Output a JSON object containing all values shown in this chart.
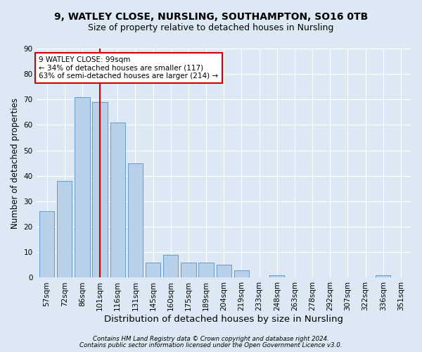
{
  "title1": "9, WATLEY CLOSE, NURSLING, SOUTHAMPTON, SO16 0TB",
  "title2": "Size of property relative to detached houses in Nursling",
  "xlabel": "Distribution of detached houses by size in Nursling",
  "ylabel": "Number of detached properties",
  "categories": [
    "57sqm",
    "72sqm",
    "86sqm",
    "101sqm",
    "116sqm",
    "131sqm",
    "145sqm",
    "160sqm",
    "175sqm",
    "189sqm",
    "204sqm",
    "219sqm",
    "233sqm",
    "248sqm",
    "263sqm",
    "278sqm",
    "292sqm",
    "307sqm",
    "322sqm",
    "336sqm",
    "351sqm"
  ],
  "values": [
    26,
    38,
    71,
    69,
    61,
    45,
    6,
    9,
    6,
    6,
    5,
    3,
    0,
    1,
    0,
    0,
    0,
    0,
    0,
    1,
    0
  ],
  "bar_color": "#b8d0ea",
  "bar_edge_color": "#6699cc",
  "property_label": "9 WATLEY CLOSE: 99sqm",
  "annotation_line1": "← 34% of detached houses are smaller (117)",
  "annotation_line2": "63% of semi-detached houses are larger (214) →",
  "vline_x_index": 3,
  "vline_color": "#cc0000",
  "footnote1": "Contains HM Land Registry data © Crown copyright and database right 2024.",
  "footnote2": "Contains public sector information licensed under the Open Government Licence v3.0.",
  "background_color": "#dce9f5",
  "plot_bg_color": "#dce9f5",
  "ylim": [
    0,
    90
  ],
  "yticks": [
    0,
    10,
    20,
    30,
    40,
    50,
    60,
    70,
    80,
    90
  ],
  "grid_color": "#ffffff",
  "title_fontsize": 10,
  "subtitle_fontsize": 9,
  "tick_fontsize": 7.5,
  "ylabel_fontsize": 8.5,
  "xlabel_fontsize": 9.5
}
